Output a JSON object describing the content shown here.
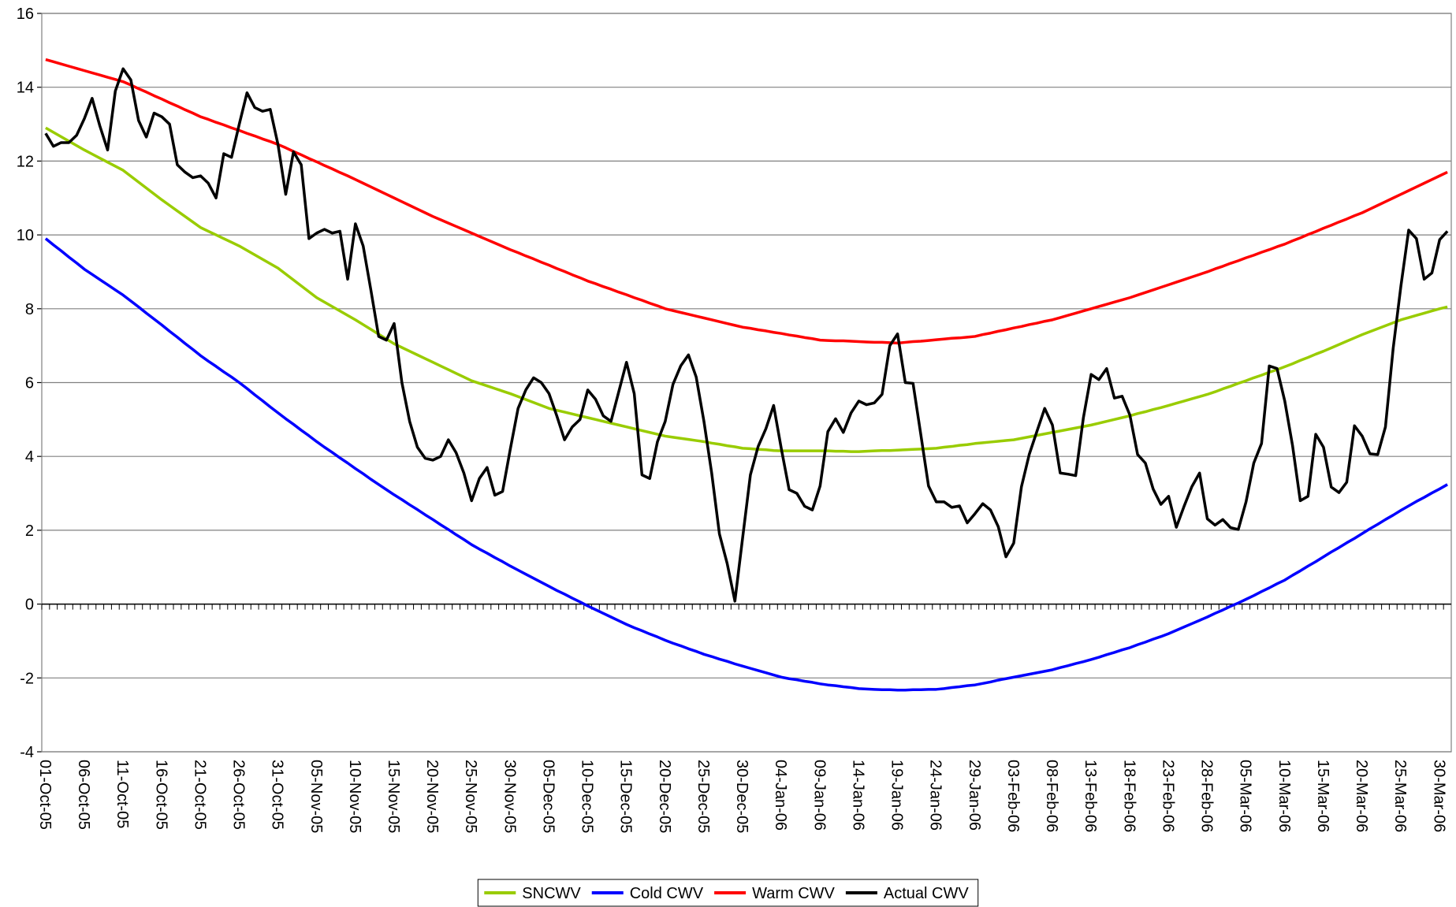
{
  "chart_data": {
    "type": "line",
    "categories": [
      "01-Oct-05",
      null,
      null,
      null,
      null,
      "06-Oct-05",
      null,
      null,
      null,
      null,
      "11-Oct-05",
      null,
      null,
      null,
      null,
      "16-Oct-05",
      null,
      null,
      null,
      null,
      "21-Oct-05",
      null,
      null,
      null,
      null,
      "26-Oct-05",
      null,
      null,
      null,
      null,
      "31-Oct-05",
      null,
      null,
      null,
      null,
      "05-Nov-05",
      null,
      null,
      null,
      null,
      "10-Nov-05",
      null,
      null,
      null,
      null,
      "15-Nov-05",
      null,
      null,
      null,
      null,
      "20-Nov-05",
      null,
      null,
      null,
      null,
      "25-Nov-05",
      null,
      null,
      null,
      null,
      "30-Nov-05",
      null,
      null,
      null,
      null,
      "05-Dec-05",
      null,
      null,
      null,
      null,
      "10-Dec-05",
      null,
      null,
      null,
      null,
      "15-Dec-05",
      null,
      null,
      null,
      null,
      "20-Dec-05",
      null,
      null,
      null,
      null,
      "25-Dec-05",
      null,
      null,
      null,
      null,
      "30-Dec-05",
      null,
      null,
      null,
      null,
      "04-Jan-06",
      null,
      null,
      null,
      null,
      "09-Jan-06",
      null,
      null,
      null,
      null,
      "14-Jan-06",
      null,
      null,
      null,
      null,
      "19-Jan-06",
      null,
      null,
      null,
      null,
      "24-Jan-06",
      null,
      null,
      null,
      null,
      "29-Jan-06",
      null,
      null,
      null,
      null,
      "03-Feb-06",
      null,
      null,
      null,
      null,
      "08-Feb-06",
      null,
      null,
      null,
      null,
      "13-Feb-06",
      null,
      null,
      null,
      null,
      "18-Feb-06",
      null,
      null,
      null,
      null,
      "23-Feb-06",
      null,
      null,
      null,
      null,
      "28-Feb-06",
      null,
      null,
      null,
      null,
      "05-Mar-06",
      null,
      null,
      null,
      null,
      "10-Mar-06",
      null,
      null,
      null,
      null,
      "15-Mar-06",
      null,
      null,
      null,
      null,
      "20-Mar-06",
      null,
      null,
      null,
      null,
      "25-Mar-06",
      null,
      null,
      null,
      null,
      "30-Mar-06",
      null
    ],
    "series": [
      {
        "name": "SNCWV",
        "color": "#99cc00",
        "values": [
          12.9,
          12.78,
          12.66,
          12.54,
          12.42,
          12.3,
          12.19,
          12.08,
          11.97,
          11.86,
          11.75,
          11.59,
          11.43,
          11.27,
          11.11,
          10.95,
          10.8,
          10.65,
          10.5,
          10.35,
          10.2,
          10.1,
          10.0,
          9.9,
          9.8,
          9.7,
          9.58,
          9.46,
          9.34,
          9.22,
          9.1,
          8.94,
          8.78,
          8.62,
          8.46,
          8.3,
          8.18,
          8.06,
          7.94,
          7.82,
          7.7,
          7.57,
          7.44,
          7.31,
          7.18,
          7.05,
          6.95,
          6.85,
          6.75,
          6.65,
          6.55,
          6.45,
          6.35,
          6.25,
          6.15,
          6.05,
          5.98,
          5.91,
          5.84,
          5.77,
          5.7,
          5.62,
          5.54,
          5.46,
          5.38,
          5.3,
          5.25,
          5.2,
          5.15,
          5.1,
          5.05,
          5.0,
          4.95,
          4.9,
          4.85,
          4.8,
          4.75,
          4.7,
          4.65,
          4.6,
          4.55,
          4.52,
          4.49,
          4.46,
          4.43,
          4.4,
          4.36,
          4.33,
          4.29,
          4.26,
          4.22,
          4.21,
          4.19,
          4.18,
          4.16,
          4.15,
          4.15,
          4.15,
          4.15,
          4.15,
          4.15,
          4.15,
          4.14,
          4.14,
          4.13,
          4.13,
          4.14,
          4.15,
          4.16,
          4.16,
          4.17,
          4.18,
          4.19,
          4.2,
          4.21,
          4.22,
          4.25,
          4.27,
          4.3,
          4.32,
          4.35,
          4.37,
          4.39,
          4.41,
          4.43,
          4.45,
          4.49,
          4.53,
          4.57,
          4.61,
          4.65,
          4.69,
          4.73,
          4.77,
          4.81,
          4.85,
          4.9,
          4.95,
          5.0,
          5.05,
          5.1,
          5.16,
          5.21,
          5.27,
          5.32,
          5.38,
          5.44,
          5.5,
          5.56,
          5.62,
          5.68,
          5.75,
          5.83,
          5.9,
          5.98,
          6.05,
          6.13,
          6.2,
          6.28,
          6.35,
          6.43,
          6.51,
          6.6,
          6.68,
          6.77,
          6.85,
          6.94,
          7.03,
          7.12,
          7.21,
          7.3,
          7.38,
          7.46,
          7.54,
          7.62,
          7.7,
          7.76,
          7.82,
          7.88,
          7.94,
          8.0,
          8.05
        ]
      },
      {
        "name": "Cold CWV",
        "color": "#0000ff",
        "values": [
          9.9,
          9.73,
          9.57,
          9.4,
          9.24,
          9.07,
          8.93,
          8.79,
          8.65,
          8.51,
          8.37,
          8.21,
          8.05,
          7.88,
          7.72,
          7.56,
          7.39,
          7.23,
          7.06,
          6.9,
          6.73,
          6.58,
          6.44,
          6.29,
          6.15,
          6.0,
          5.84,
          5.67,
          5.51,
          5.34,
          5.18,
          5.02,
          4.87,
          4.71,
          4.56,
          4.4,
          4.25,
          4.11,
          3.96,
          3.82,
          3.67,
          3.53,
          3.38,
          3.24,
          3.1,
          2.96,
          2.83,
          2.69,
          2.56,
          2.42,
          2.29,
          2.15,
          2.02,
          1.88,
          1.75,
          1.61,
          1.49,
          1.38,
          1.26,
          1.15,
          1.03,
          0.92,
          0.81,
          0.7,
          0.59,
          0.48,
          0.37,
          0.27,
          0.16,
          0.06,
          -0.05,
          -0.15,
          -0.25,
          -0.35,
          -0.45,
          -0.55,
          -0.64,
          -0.72,
          -0.81,
          -0.89,
          -0.98,
          -1.06,
          -1.13,
          -1.21,
          -1.28,
          -1.36,
          -1.42,
          -1.49,
          -1.55,
          -1.62,
          -1.68,
          -1.74,
          -1.8,
          -1.86,
          -1.92,
          -1.98,
          -2.02,
          -2.05,
          -2.09,
          -2.12,
          -2.16,
          -2.19,
          -2.21,
          -2.24,
          -2.26,
          -2.29,
          -2.3,
          -2.31,
          -2.32,
          -2.32,
          -2.33,
          -2.33,
          -2.32,
          -2.32,
          -2.31,
          -2.31,
          -2.29,
          -2.26,
          -2.24,
          -2.21,
          -2.19,
          -2.15,
          -2.11,
          -2.06,
          -2.02,
          -1.98,
          -1.94,
          -1.9,
          -1.86,
          -1.82,
          -1.78,
          -1.72,
          -1.67,
          -1.61,
          -1.56,
          -1.5,
          -1.44,
          -1.37,
          -1.31,
          -1.24,
          -1.18,
          -1.1,
          -1.03,
          -0.95,
          -0.88,
          -0.8,
          -0.71,
          -0.62,
          -0.53,
          -0.44,
          -0.35,
          -0.25,
          -0.16,
          -0.06,
          0.03,
          0.13,
          0.23,
          0.34,
          0.44,
          0.55,
          0.65,
          0.78,
          0.9,
          1.03,
          1.15,
          1.28,
          1.41,
          1.53,
          1.66,
          1.78,
          1.91,
          2.04,
          2.16,
          2.29,
          2.41,
          2.54,
          2.66,
          2.78,
          2.89,
          3.01,
          3.12,
          3.24
        ]
      },
      {
        "name": "Warm CWV",
        "color": "#ff0000",
        "values": [
          14.75,
          14.69,
          14.63,
          14.57,
          14.51,
          14.45,
          14.39,
          14.33,
          14.27,
          14.21,
          14.15,
          14.06,
          13.96,
          13.87,
          13.77,
          13.68,
          13.58,
          13.49,
          13.39,
          13.3,
          13.2,
          13.13,
          13.05,
          12.98,
          12.9,
          12.83,
          12.75,
          12.68,
          12.6,
          12.53,
          12.45,
          12.36,
          12.26,
          12.17,
          12.07,
          11.98,
          11.88,
          11.79,
          11.69,
          11.6,
          11.5,
          11.4,
          11.3,
          11.2,
          11.1,
          11.0,
          10.9,
          10.8,
          10.7,
          10.6,
          10.5,
          10.41,
          10.32,
          10.23,
          10.14,
          10.05,
          9.96,
          9.87,
          9.78,
          9.69,
          9.6,
          9.52,
          9.43,
          9.35,
          9.26,
          9.18,
          9.09,
          9.01,
          8.92,
          8.84,
          8.75,
          8.68,
          8.6,
          8.53,
          8.45,
          8.38,
          8.3,
          8.23,
          8.15,
          8.08,
          8.0,
          7.95,
          7.9,
          7.85,
          7.8,
          7.75,
          7.7,
          7.65,
          7.6,
          7.55,
          7.5,
          7.47,
          7.43,
          7.4,
          7.36,
          7.33,
          7.29,
          7.26,
          7.22,
          7.19,
          7.15,
          7.14,
          7.13,
          7.13,
          7.12,
          7.11,
          7.1,
          7.09,
          7.09,
          7.08,
          7.07,
          7.09,
          7.11,
          7.12,
          7.14,
          7.16,
          7.18,
          7.2,
          7.21,
          7.23,
          7.25,
          7.3,
          7.34,
          7.39,
          7.43,
          7.48,
          7.52,
          7.57,
          7.61,
          7.66,
          7.7,
          7.76,
          7.82,
          7.88,
          7.94,
          8.0,
          8.06,
          8.12,
          8.18,
          8.24,
          8.3,
          8.37,
          8.44,
          8.51,
          8.58,
          8.65,
          8.72,
          8.79,
          8.86,
          8.93,
          9.0,
          9.08,
          9.15,
          9.23,
          9.3,
          9.38,
          9.45,
          9.53,
          9.6,
          9.68,
          9.75,
          9.84,
          9.92,
          10.01,
          10.09,
          10.18,
          10.26,
          10.35,
          10.43,
          10.52,
          10.6,
          10.7,
          10.8,
          10.9,
          11.0,
          11.1,
          11.2,
          11.3,
          11.4,
          11.5,
          11.6,
          11.7
        ]
      },
      {
        "name": "Actual CWV",
        "color": "#000000",
        "values": [
          12.75,
          12.4,
          12.5,
          12.5,
          12.7,
          13.15,
          13.7,
          12.95,
          12.3,
          13.9,
          14.5,
          14.2,
          13.1,
          12.65,
          13.3,
          13.2,
          13.0,
          11.9,
          11.7,
          11.55,
          11.6,
          11.4,
          11.0,
          12.2,
          12.1,
          13.0,
          13.85,
          13.45,
          13.35,
          13.4,
          12.45,
          11.1,
          12.25,
          11.9,
          9.9,
          10.05,
          10.15,
          10.05,
          10.1,
          8.8,
          10.3,
          9.7,
          8.5,
          7.25,
          7.15,
          7.6,
          6.0,
          4.95,
          4.25,
          3.95,
          3.9,
          4.0,
          4.45,
          4.1,
          3.55,
          2.8,
          3.4,
          3.7,
          2.95,
          3.05,
          4.2,
          5.3,
          5.8,
          6.13,
          6.0,
          5.7,
          5.1,
          4.45,
          4.8,
          5.0,
          5.8,
          5.55,
          5.1,
          4.95,
          5.75,
          6.55,
          5.7,
          3.5,
          3.4,
          4.4,
          4.95,
          5.95,
          6.45,
          6.75,
          6.15,
          4.95,
          3.55,
          1.9,
          1.1,
          0.08,
          1.8,
          3.5,
          4.27,
          4.75,
          5.38,
          4.2,
          3.1,
          3.0,
          2.65,
          2.55,
          3.2,
          4.67,
          5.02,
          4.65,
          5.18,
          5.5,
          5.4,
          5.45,
          5.68,
          7.0,
          7.32,
          6.0,
          5.98,
          4.6,
          3.2,
          2.77,
          2.77,
          2.62,
          2.66,
          2.2,
          2.45,
          2.72,
          2.55,
          2.1,
          1.28,
          1.65,
          3.18,
          4.05,
          4.68,
          5.3,
          4.85,
          3.55,
          3.52,
          3.48,
          5.05,
          6.22,
          6.08,
          6.38,
          5.58,
          5.63,
          5.12,
          4.05,
          3.82,
          3.12,
          2.7,
          2.92,
          2.08,
          2.65,
          3.18,
          3.55,
          2.31,
          2.14,
          2.29,
          2.07,
          2.02,
          2.77,
          3.82,
          4.35,
          6.45,
          6.38,
          5.5,
          4.3,
          2.8,
          2.92,
          4.6,
          4.25,
          3.17,
          3.02,
          3.3,
          4.83,
          4.55,
          4.07,
          4.05,
          4.8,
          6.93,
          8.62,
          10.13,
          9.9,
          8.8,
          8.97,
          9.87,
          10.1
        ]
      }
    ],
    "ylim": [
      -4,
      16
    ],
    "yticks": [
      -4,
      -2,
      0,
      2,
      4,
      6,
      8,
      10,
      12,
      14,
      16
    ],
    "grid": true,
    "legend": "bottom"
  }
}
